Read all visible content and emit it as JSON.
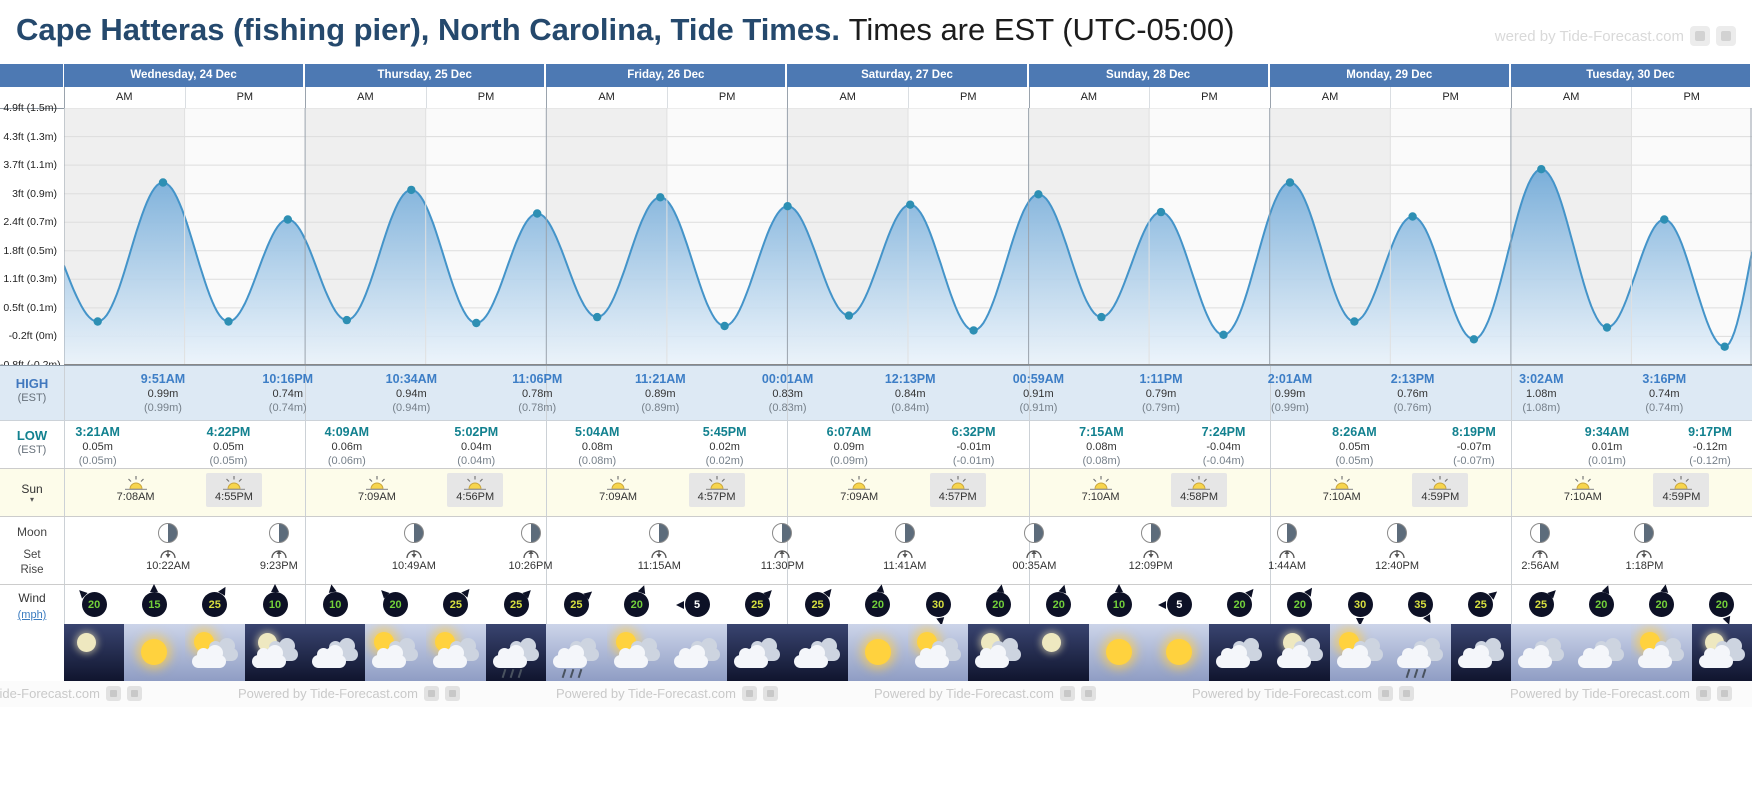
{
  "header": {
    "title": "Cape Hatteras (fishing pier), North Carolina, Tide Times.",
    "subtitle": "Times are EST (UTC-05:00)",
    "watermark": "wered by Tide-Forecast.com"
  },
  "col_labels": {
    "am": "AM",
    "pm": "PM"
  },
  "days": [
    {
      "label": "Wednesday, 24 Dec"
    },
    {
      "label": "Thursday, 25 Dec"
    },
    {
      "label": "Friday, 26 Dec"
    },
    {
      "label": "Saturday, 27 Dec"
    },
    {
      "label": "Sunday, 28 Dec"
    },
    {
      "label": "Monday, 29 Dec"
    },
    {
      "label": "Tuesday, 30 Dec"
    }
  ],
  "row_labels": {
    "high": "HIGH",
    "high_sub": "(EST)",
    "low": "LOW",
    "low_sub": "(EST)",
    "sun": "Sun",
    "sun_caret": "▾",
    "moon": "Moon",
    "moon_set": "Set",
    "moon_rise": "Rise",
    "wind": "Wind",
    "wind_unit": "(mph)"
  },
  "chart_data": {
    "type": "area",
    "title": "7-day tide height curve",
    "ylabel": "Tide height ft (m)",
    "y_tick_labels": [
      "4.9ft (1.5m)",
      "4.3ft (1.3m)",
      "3.7ft (1.1m)",
      "3ft (0.9m)",
      "2.4ft (0.7m)",
      "1.8ft (0.5m)",
      "1.1ft (0.3m)",
      "0.5ft (0.1m)",
      "-0.2ft (0m)",
      "-0.8ft (-0.2m)"
    ],
    "ylim_ft": [
      -0.8,
      4.9
    ],
    "x_hours_range": [
      0,
      168
    ],
    "extremes": [
      {
        "t": -3.2,
        "m": 0.78,
        "type": "high",
        "synthetic": true
      },
      {
        "t": 3.35,
        "m": 0.05,
        "type": "low",
        "time": "3:21AM",
        "h1": "0.05m",
        "h2": "(0.05m)"
      },
      {
        "t": 9.85,
        "m": 0.99,
        "type": "high",
        "time": "9:51AM",
        "h1": "0.99m",
        "h2": "(0.99m)"
      },
      {
        "t": 16.37,
        "m": 0.05,
        "type": "low",
        "time": "4:22PM",
        "h1": "0.05m",
        "h2": "(0.05m)"
      },
      {
        "t": 22.27,
        "m": 0.74,
        "type": "high",
        "time": "10:16PM",
        "h1": "0.74m",
        "h2": "(0.74m)"
      },
      {
        "t": 28.15,
        "m": 0.06,
        "type": "low",
        "time": "4:09AM",
        "h1": "0.06m",
        "h2": "(0.06m)"
      },
      {
        "t": 34.57,
        "m": 0.94,
        "type": "high",
        "time": "10:34AM",
        "h1": "0.94m",
        "h2": "(0.94m)"
      },
      {
        "t": 41.03,
        "m": 0.04,
        "type": "low",
        "time": "5:02PM",
        "h1": "0.04m",
        "h2": "(0.04m)"
      },
      {
        "t": 47.1,
        "m": 0.78,
        "type": "high",
        "time": "11:06PM",
        "h1": "0.78m",
        "h2": "(0.78m)"
      },
      {
        "t": 53.07,
        "m": 0.08,
        "type": "low",
        "time": "5:04AM",
        "h1": "0.08m",
        "h2": "(0.08m)"
      },
      {
        "t": 59.35,
        "m": 0.89,
        "type": "high",
        "time": "11:21AM",
        "h1": "0.89m",
        "h2": "(0.89m)"
      },
      {
        "t": 65.75,
        "m": 0.02,
        "type": "low",
        "time": "5:45PM",
        "h1": "0.02m",
        "h2": "(0.02m)"
      },
      {
        "t": 72.02,
        "m": 0.83,
        "type": "high",
        "time": "00:01AM",
        "h1": "0.83m",
        "h2": "(0.83m)"
      },
      {
        "t": 78.12,
        "m": 0.09,
        "type": "low",
        "time": "6:07AM",
        "h1": "0.09m",
        "h2": "(0.09m)"
      },
      {
        "t": 84.22,
        "m": 0.84,
        "type": "high",
        "time": "12:13PM",
        "h1": "0.84m",
        "h2": "(0.84m)"
      },
      {
        "t": 90.53,
        "m": -0.01,
        "type": "low",
        "time": "6:32PM",
        "h1": "-0.01m",
        "h2": "(-0.01m)"
      },
      {
        "t": 96.98,
        "m": 0.91,
        "type": "high",
        "time": "00:59AM",
        "h1": "0.91m",
        "h2": "(0.91m)"
      },
      {
        "t": 103.25,
        "m": 0.08,
        "type": "low",
        "time": "7:15AM",
        "h1": "0.08m",
        "h2": "(0.08m)"
      },
      {
        "t": 109.18,
        "m": 0.79,
        "type": "high",
        "time": "1:11PM",
        "h1": "0.79m",
        "h2": "(0.79m)"
      },
      {
        "t": 115.4,
        "m": -0.04,
        "type": "low",
        "time": "7:24PM",
        "h1": "-0.04m",
        "h2": "(-0.04m)"
      },
      {
        "t": 122.02,
        "m": 0.99,
        "type": "high",
        "time": "2:01AM",
        "h1": "0.99m",
        "h2": "(0.99m)"
      },
      {
        "t": 128.43,
        "m": 0.05,
        "type": "low",
        "time": "8:26AM",
        "h1": "0.05m",
        "h2": "(0.05m)"
      },
      {
        "t": 134.22,
        "m": 0.76,
        "type": "high",
        "time": "2:13PM",
        "h1": "0.76m",
        "h2": "(0.76m)"
      },
      {
        "t": 140.32,
        "m": -0.07,
        "type": "low",
        "time": "8:19PM",
        "h1": "-0.07m",
        "h2": "(-0.07m)"
      },
      {
        "t": 147.03,
        "m": 1.08,
        "type": "high",
        "time": "3:02AM",
        "h1": "1.08m",
        "h2": "(1.08m)"
      },
      {
        "t": 153.57,
        "m": 0.01,
        "type": "low",
        "time": "9:34AM",
        "h1": "0.01m",
        "h2": "(0.01m)"
      },
      {
        "t": 159.27,
        "m": 0.74,
        "type": "high",
        "time": "3:16PM",
        "h1": "0.74m",
        "h2": "(0.74m)"
      },
      {
        "t": 165.28,
        "m": -0.12,
        "type": "low",
        "time": "9:17PM",
        "h1": "-0.12m",
        "h2": "(-0.12m)"
      },
      {
        "t": 170.6,
        "m": 1.12,
        "type": "high",
        "synthetic": true
      }
    ]
  },
  "sun_events": [
    {
      "t": 7.13,
      "time": "7:08AM",
      "kind": "rise"
    },
    {
      "t": 16.92,
      "time": "4:55PM",
      "kind": "set"
    },
    {
      "t": 31.15,
      "time": "7:09AM",
      "kind": "rise"
    },
    {
      "t": 40.93,
      "time": "4:56PM",
      "kind": "set"
    },
    {
      "t": 55.15,
      "time": "7:09AM",
      "kind": "rise"
    },
    {
      "t": 64.95,
      "time": "4:57PM",
      "kind": "set"
    },
    {
      "t": 79.15,
      "time": "7:09AM",
      "kind": "rise"
    },
    {
      "t": 88.95,
      "time": "4:57PM",
      "kind": "set"
    },
    {
      "t": 103.17,
      "time": "7:10AM",
      "kind": "rise"
    },
    {
      "t": 112.97,
      "time": "4:58PM",
      "kind": "set"
    },
    {
      "t": 127.17,
      "time": "7:10AM",
      "kind": "rise"
    },
    {
      "t": 136.98,
      "time": "4:59PM",
      "kind": "set"
    },
    {
      "t": 151.17,
      "time": "7:10AM",
      "kind": "rise"
    },
    {
      "t": 160.98,
      "time": "4:59PM",
      "kind": "set"
    }
  ],
  "moon_events": [
    {
      "t": 10.37,
      "time": "10:22AM",
      "kind": "set"
    },
    {
      "t": 21.38,
      "time": "9:23PM",
      "kind": "rise"
    },
    {
      "t": 34.82,
      "time": "10:49AM",
      "kind": "set"
    },
    {
      "t": 46.43,
      "time": "10:26PM",
      "kind": "rise"
    },
    {
      "t": 59.25,
      "time": "11:15AM",
      "kind": "set"
    },
    {
      "t": 71.5,
      "time": "11:30PM",
      "kind": "rise"
    },
    {
      "t": 83.68,
      "time": "11:41AM",
      "kind": "set"
    },
    {
      "t": 96.58,
      "time": "00:35AM",
      "kind": "rise"
    },
    {
      "t": 108.15,
      "time": "12:09PM",
      "kind": "set"
    },
    {
      "t": 121.73,
      "time": "1:44AM",
      "kind": "rise"
    },
    {
      "t": 132.67,
      "time": "12:40PM",
      "kind": "set"
    },
    {
      "t": 146.93,
      "time": "2:56AM",
      "kind": "rise"
    },
    {
      "t": 157.3,
      "time": "1:18PM",
      "kind": "set"
    }
  ],
  "wind": {
    "values": [
      20,
      15,
      25,
      10,
      10,
      20,
      25,
      25,
      25,
      20,
      5,
      25,
      25,
      20,
      30,
      20,
      20,
      10,
      5,
      20,
      20,
      30,
      35,
      25,
      25,
      20,
      20,
      20
    ],
    "dirs_deg": [
      315,
      0,
      30,
      0,
      350,
      315,
      40,
      45,
      50,
      20,
      270,
      45,
      40,
      10,
      170,
      10,
      15,
      0,
      270,
      40,
      35,
      180,
      150,
      50,
      45,
      20,
      10,
      160
    ],
    "color_low": "#ffffff",
    "color_mid": "#72cf3a",
    "color_high": "#d6df3f"
  },
  "weather": [
    "night-moon",
    "sun",
    "sun-cloud",
    "night-cloud-moon",
    "night-cloud",
    "sun-cloud",
    "sun-cloud",
    "night-rain",
    "rain",
    "sun-cloud",
    "cloud",
    "night-cloud",
    "night-cloud",
    "sun",
    "sun-cloud",
    "night-cloud-moon",
    "night-moon",
    "sun",
    "sun",
    "night-cloud",
    "night-cloud-moon",
    "sun-cloud",
    "rain",
    "night-cloud",
    "cloud",
    "cloud",
    "sun-cloud",
    "night-cloud-moon"
  ],
  "footer": {
    "text": "Powered by Tide-Forecast.com"
  }
}
